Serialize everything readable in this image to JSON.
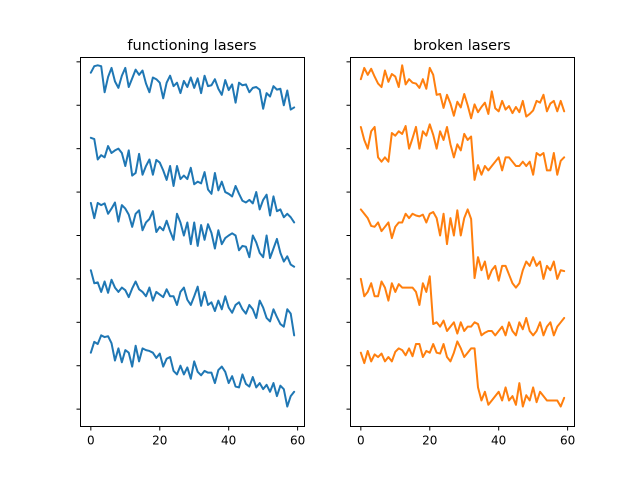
{
  "chart_data": [
    {
      "type": "line",
      "title": "functioning lasers",
      "color": "#1f77b4",
      "xlabel": "",
      "ylabel": "",
      "xlim": [
        -3,
        62
      ],
      "ylim": [
        -0.4,
        8.1
      ],
      "xticks": [
        0,
        20,
        40,
        60
      ],
      "yticks": [
        0,
        1,
        2,
        3,
        4,
        5,
        6,
        7,
        8
      ],
      "ytick_labels_visible": false,
      "grid": false,
      "x": [
        0,
        1,
        2,
        3,
        4,
        5,
        6,
        7,
        8,
        9,
        10,
        11,
        12,
        13,
        14,
        15,
        16,
        17,
        18,
        19,
        20,
        21,
        22,
        23,
        24,
        25,
        26,
        27,
        28,
        29,
        30,
        31,
        32,
        33,
        34,
        35,
        36,
        37,
        38,
        39,
        40,
        41,
        42,
        43,
        44,
        45,
        46,
        47,
        48,
        49,
        50,
        51,
        52,
        53,
        54,
        55,
        56,
        57,
        58,
        59
      ],
      "series": [
        {
          "values": [
            7.75,
            7.9,
            7.92,
            7.9,
            7.3,
            7.65,
            7.86,
            7.55,
            7.4,
            7.68,
            7.86,
            7.42,
            7.62,
            7.82,
            7.7,
            7.8,
            7.5,
            7.3,
            7.64,
            7.6,
            7.52,
            7.16,
            7.52,
            7.68,
            7.44,
            7.52,
            7.28,
            7.56,
            7.42,
            7.64,
            7.4,
            7.62,
            7.28,
            7.68,
            7.44,
            7.46,
            7.6,
            7.38,
            7.24,
            7.58,
            7.35,
            7.48,
            7.06,
            7.52,
            7.46,
            7.48,
            7.3,
            7.4,
            7.42,
            7.36,
            6.92,
            7.28,
            7.2,
            7.44,
            7.36,
            7.38,
            7.0,
            7.34,
            6.9,
            6.95
          ]
        },
        {
          "values": [
            6.25,
            6.22,
            5.75,
            5.85,
            5.8,
            6.06,
            5.9,
            5.96,
            6.0,
            5.9,
            5.6,
            5.96,
            5.38,
            5.44,
            5.88,
            5.4,
            5.6,
            5.75,
            5.4,
            5.74,
            5.68,
            5.5,
            5.28,
            5.6,
            5.14,
            5.6,
            5.3,
            5.38,
            5.3,
            5.56,
            5.18,
            5.24,
            5.2,
            5.46,
            5.06,
            4.96,
            5.44,
            5.04,
            5.24,
            5.0,
            4.96,
            4.9,
            5.14,
            4.96,
            4.8,
            4.76,
            4.82,
            4.74,
            5.0,
            4.6,
            4.82,
            4.94,
            4.46,
            4.9,
            4.56,
            4.6,
            4.42,
            4.5,
            4.42,
            4.3
          ]
        },
        {
          "values": [
            4.75,
            4.4,
            4.75,
            4.7,
            4.74,
            4.5,
            4.62,
            4.76,
            4.32,
            4.7,
            4.62,
            4.48,
            4.2,
            4.5,
            4.58,
            4.12,
            4.3,
            4.38,
            4.56,
            4.08,
            4.2,
            4.12,
            4.34,
            4.1,
            3.9,
            4.5,
            4.3,
            4.0,
            4.3,
            3.8,
            4.3,
            3.76,
            4.24,
            3.9,
            4.26,
            4.06,
            3.7,
            4.12,
            3.8,
            3.94,
            4.0,
            4.05,
            4.0,
            3.66,
            3.76,
            3.74,
            3.5,
            4.0,
            3.84,
            3.6,
            3.5,
            4.0,
            3.48,
            3.7,
            3.92,
            3.6,
            3.4,
            3.52,
            3.33,
            3.28
          ]
        },
        {
          "values": [
            3.2,
            2.9,
            2.92,
            2.7,
            2.94,
            2.68,
            2.98,
            2.8,
            2.7,
            2.8,
            2.74,
            2.58,
            2.78,
            2.94,
            2.76,
            2.7,
            2.6,
            2.8,
            2.5,
            2.7,
            2.64,
            2.58,
            2.76,
            2.6,
            2.6,
            2.4,
            2.7,
            2.8,
            2.52,
            2.4,
            2.6,
            2.82,
            2.38,
            2.7,
            2.4,
            2.46,
            2.26,
            2.5,
            2.3,
            2.6,
            2.34,
            2.22,
            2.4,
            2.46,
            2.3,
            2.2,
            2.4,
            2.3,
            2.1,
            2.5,
            2.34,
            2.1,
            2.02,
            2.3,
            2.12,
            1.96,
            1.9,
            2.3,
            2.2,
            1.7
          ]
        },
        {
          "values": [
            1.3,
            1.55,
            1.5,
            1.7,
            1.66,
            1.68,
            1.52,
            1.12,
            1.4,
            1.08,
            1.36,
            1.3,
            0.98,
            1.46,
            1.1,
            1.4,
            1.36,
            1.34,
            1.3,
            1.18,
            1.28,
            0.98,
            1.16,
            1.2,
            0.88,
            0.8,
            1.0,
            0.8,
            0.96,
            0.7,
            1.1,
            0.86,
            0.78,
            0.88,
            0.84,
            0.84,
            0.6,
            0.9,
            0.98,
            0.86,
            0.6,
            0.76,
            0.52,
            0.5,
            0.8,
            0.58,
            0.52,
            0.74,
            0.5,
            0.6,
            0.46,
            0.56,
            0.4,
            0.6,
            0.3,
            0.54,
            0.46,
            0.06,
            0.3,
            0.4
          ]
        }
      ]
    },
    {
      "type": "line",
      "title": "broken lasers",
      "color": "#ff7f0e",
      "xlabel": "",
      "ylabel": "",
      "xlim": [
        -3,
        62
      ],
      "ylim": [
        -0.4,
        8.1
      ],
      "xticks": [
        0,
        20,
        40,
        60
      ],
      "yticks": [
        0,
        1,
        2,
        3,
        4,
        5,
        6,
        7,
        8
      ],
      "ytick_labels_visible": false,
      "grid": false,
      "x": [
        0,
        1,
        2,
        3,
        4,
        5,
        6,
        7,
        8,
        9,
        10,
        11,
        12,
        13,
        14,
        15,
        16,
        17,
        18,
        19,
        20,
        21,
        22,
        23,
        24,
        25,
        26,
        27,
        28,
        29,
        30,
        31,
        32,
        33,
        34,
        35,
        36,
        37,
        38,
        39,
        40,
        41,
        42,
        43,
        44,
        45,
        46,
        47,
        48,
        49,
        50,
        51,
        52,
        53,
        54,
        55,
        56,
        57,
        58,
        59
      ],
      "series": [
        {
          "values": [
            7.6,
            7.86,
            7.7,
            7.84,
            7.66,
            7.5,
            7.42,
            7.8,
            7.54,
            7.72,
            7.66,
            7.42,
            7.92,
            7.48,
            7.6,
            7.52,
            7.5,
            7.4,
            7.6,
            7.38,
            7.86,
            7.7,
            7.24,
            7.26,
            6.94,
            7.24,
            7.04,
            6.76,
            7.08,
            6.95,
            7.26,
            7.0,
            6.7,
            7.02,
            6.84,
            6.96,
            7.06,
            6.8,
            7.32,
            6.93,
            6.86,
            7.1,
            6.9,
            6.98,
            6.82,
            6.96,
            6.84,
            7.1,
            6.74,
            6.8,
            6.88,
            7.1,
            7.06,
            7.24,
            6.86,
            7.04,
            7.1,
            6.86,
            7.1,
            6.86
          ]
        },
        {
          "values": [
            6.5,
            6.2,
            6.0,
            6.4,
            6.5,
            5.8,
            5.7,
            5.8,
            5.7,
            6.36,
            6.3,
            6.4,
            6.34,
            6.52,
            6.0,
            6.24,
            6.5,
            6.0,
            6.4,
            6.3,
            6.56,
            6.32,
            6.0,
            6.4,
            6.2,
            6.5,
            6.1,
            5.8,
            6.1,
            5.96,
            6.34,
            6.2,
            6.28,
            5.28,
            5.62,
            5.4,
            5.6,
            5.5,
            5.6,
            5.7,
            5.8,
            5.5,
            5.8,
            5.8,
            5.7,
            5.6,
            5.6,
            5.7,
            5.6,
            5.7,
            5.4,
            5.9,
            5.84,
            5.9,
            5.5,
            5.5,
            5.9,
            5.4,
            5.72,
            5.8
          ]
        },
        {
          "values": [
            4.6,
            4.5,
            4.4,
            4.22,
            4.2,
            4.3,
            4.1,
            4.2,
            4.3,
            3.94,
            4.2,
            4.3,
            4.3,
            4.5,
            4.4,
            4.5,
            4.46,
            4.44,
            4.48,
            4.3,
            4.5,
            4.54,
            4.4,
            4.0,
            4.5,
            3.8,
            4.4,
            4.0,
            4.58,
            4.0,
            4.4,
            4.6,
            4.38,
            3.02,
            3.5,
            3.2,
            3.4,
            3.0,
            3.2,
            3.3,
            2.96,
            3.3,
            3.3,
            3.1,
            2.9,
            2.8,
            2.9,
            3.2,
            3.4,
            3.3,
            3.5,
            3.3,
            3.4,
            3.0,
            3.3,
            3.2,
            3.4,
            3.0,
            3.2,
            3.18
          ]
        },
        {
          "values": [
            3.0,
            2.6,
            2.7,
            2.9,
            2.6,
            2.6,
            2.94,
            2.8,
            2.5,
            2.9,
            2.7,
            2.88,
            2.8,
            2.8,
            2.8,
            2.8,
            2.7,
            2.4,
            2.9,
            2.7,
            3.06,
            1.96,
            2.0,
            1.9,
            2.04,
            1.8,
            1.9,
            2.0,
            1.74,
            2.0,
            1.8,
            1.9,
            1.9,
            2.0,
            1.96,
            1.7,
            1.76,
            1.8,
            1.8,
            1.7,
            1.8,
            1.9,
            1.7,
            2.0,
            1.8,
            1.7,
            2.0,
            1.84,
            2.1,
            1.8,
            1.7,
            1.8,
            2.0,
            1.7,
            1.9,
            2.0,
            1.7,
            1.9,
            2.0,
            2.1
          ]
        },
        {
          "values": [
            1.3,
            1.06,
            1.34,
            1.1,
            1.26,
            1.2,
            1.28,
            1.1,
            1.2,
            1.1,
            1.32,
            1.4,
            1.36,
            1.24,
            1.4,
            1.22,
            1.5,
            1.5,
            1.2,
            1.34,
            1.3,
            1.5,
            1.3,
            1.28,
            1.5,
            1.2,
            1.1,
            1.3,
            1.56,
            1.4,
            1.2,
            1.3,
            1.4,
            1.4,
            0.5,
            0.2,
            0.4,
            0.1,
            0.2,
            0.3,
            0.4,
            0.2,
            0.5,
            0.2,
            0.3,
            0.1,
            0.6,
            0.06,
            0.32,
            0.2,
            0.5,
            0.16,
            0.4,
            0.3,
            0.2,
            0.2,
            0.2,
            0.2,
            0.06,
            0.26
          ]
        }
      ]
    }
  ]
}
